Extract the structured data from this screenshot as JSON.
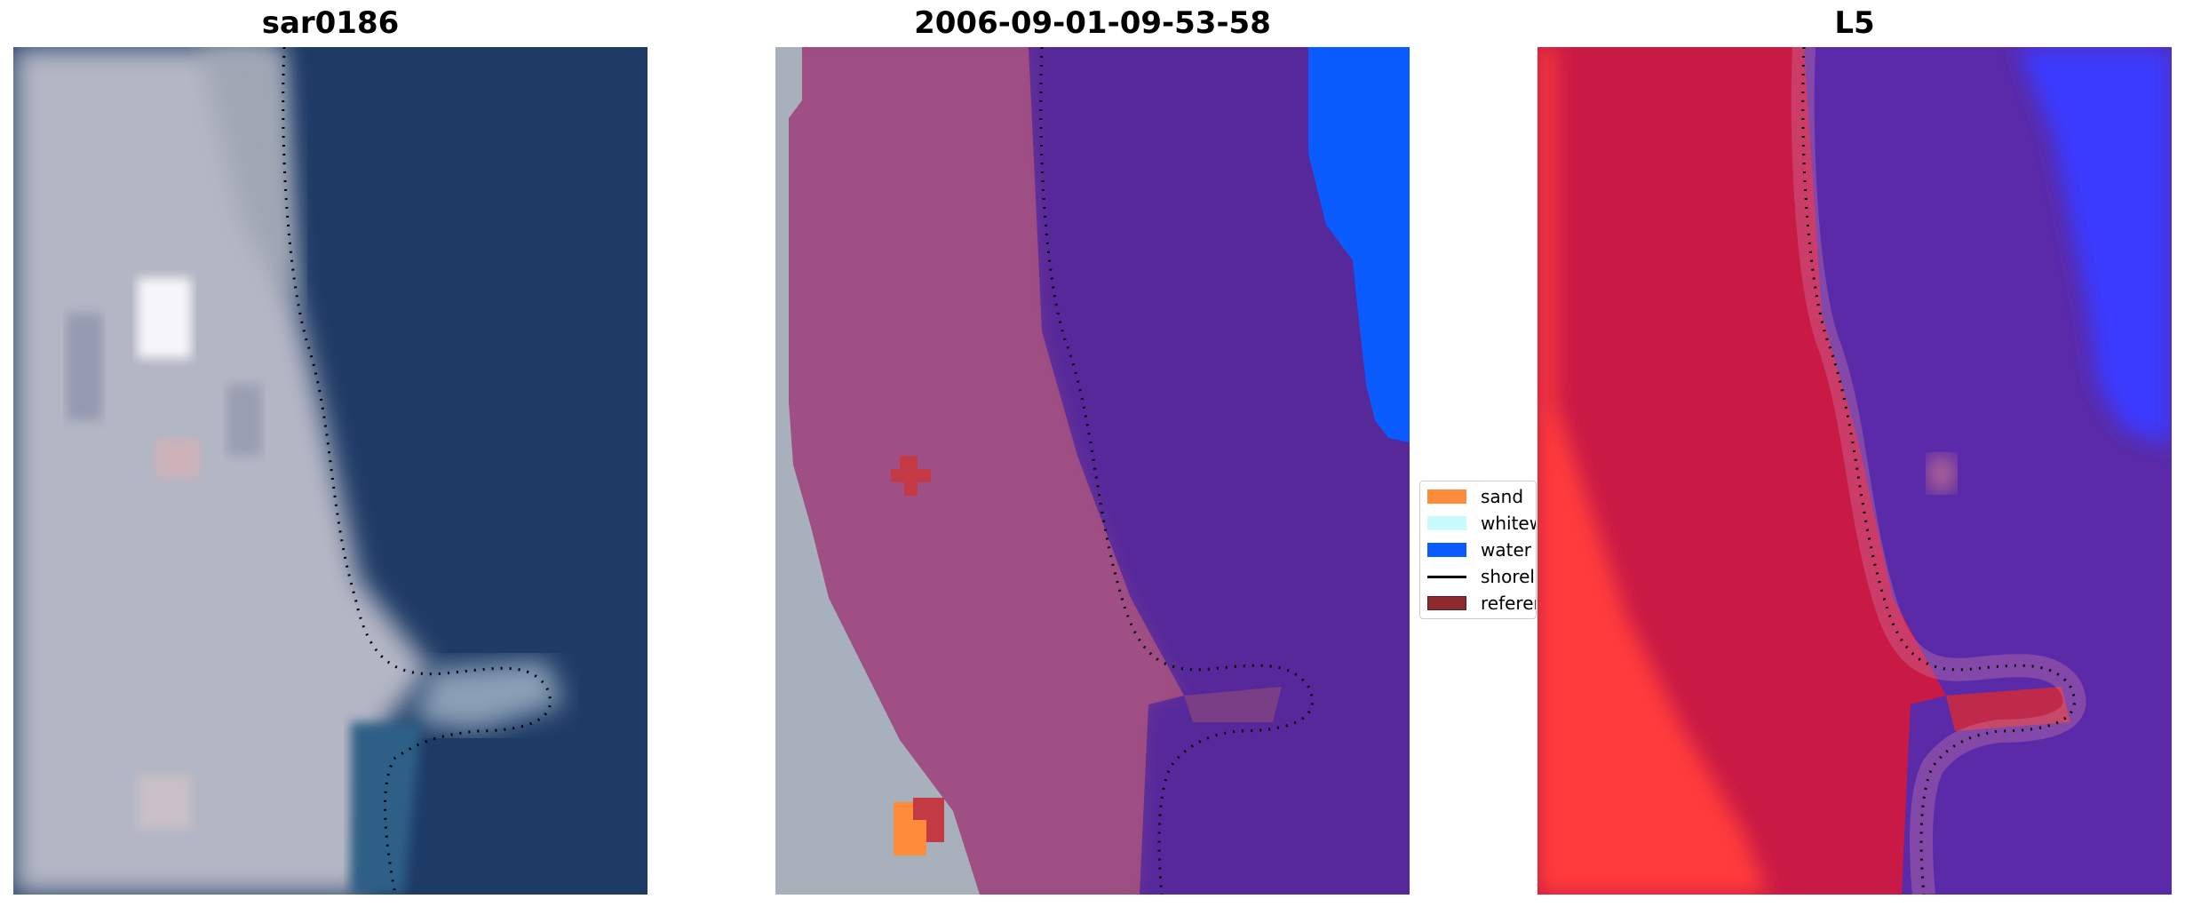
{
  "panels": [
    {
      "title": "sar0186",
      "image": "satellite-rgb-image"
    },
    {
      "title": "2006-09-01-09-53-58",
      "image": "classified-image"
    },
    {
      "title": "L5",
      "image": "mndwi-image"
    }
  ],
  "legend": {
    "items": [
      {
        "label": "sand",
        "color": "#ff8c3a",
        "kind": "patch"
      },
      {
        "label": "whitewater",
        "color": "#c8fbfb",
        "kind": "patch"
      },
      {
        "label": "water",
        "color": "#0a5cff",
        "kind": "patch"
      },
      {
        "label": "shoreline",
        "color": "#000000",
        "kind": "line"
      },
      {
        "label": "reference",
        "color": "#8c2a2e",
        "kind": "patch"
      }
    ]
  },
  "colors": {
    "rgb_land": "#b6b9c6",
    "rgb_water": "#1f3c66",
    "class_land": "#9a4a80",
    "class_bare": "#a8b0bc",
    "class_sea": "#56289a",
    "class_water": "#0a5cff",
    "idx_land": "#c81a45",
    "idx_sea": "#5a2aa8",
    "idx_water": "#3a3aff",
    "idx_low": "#ff3a3a",
    "shoreline": "#000000"
  }
}
